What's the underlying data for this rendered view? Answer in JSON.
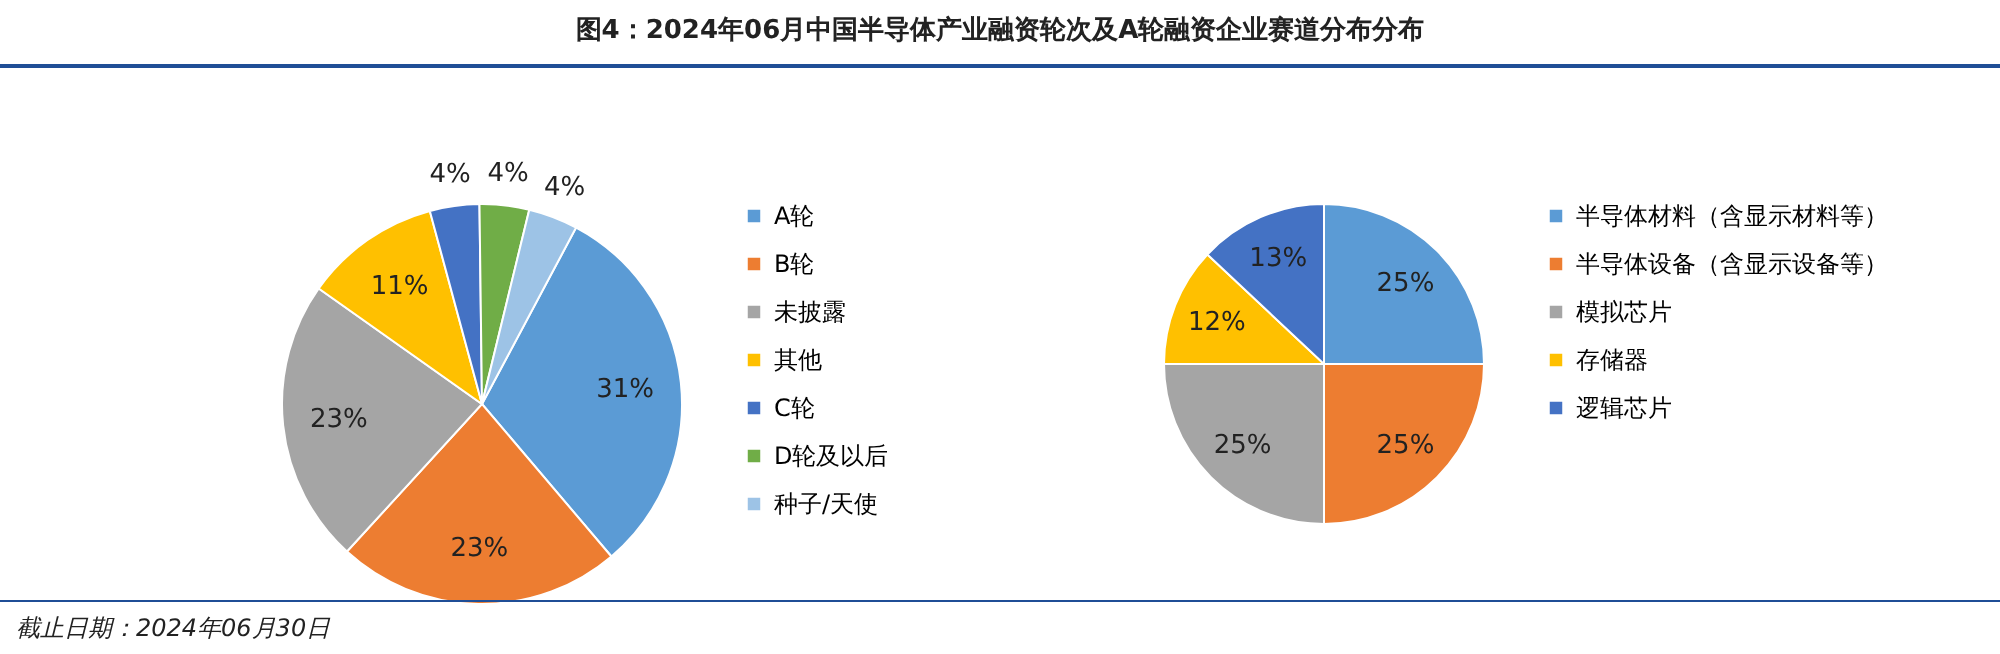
{
  "chart_data": [
    {
      "type": "pie",
      "title": "图4：2024年06月中国半导体产业融资轮次及A轮融资企业赛道分布分布",
      "categories": [
        "A轮",
        "B轮",
        "未披露",
        "其他",
        "C轮",
        "D轮及以后",
        "种子/天使"
      ],
      "values": [
        31,
        23,
        23,
        11,
        4,
        4,
        4
      ],
      "colors": [
        "#5b9bd5",
        "#ed7d31",
        "#a5a5a5",
        "#ffc000",
        "#4472c4",
        "#70ad47",
        "#9dc3e6"
      ],
      "value_labels": [
        "31%",
        "23%",
        "23%",
        "11%",
        "4%",
        "4%",
        "4%"
      ],
      "legend": "right"
    },
    {
      "type": "pie",
      "categories": [
        "半导体材料（含显示材料等）",
        "半导体设备（含显示设备等）",
        "模拟芯片",
        "存储器",
        "逻辑芯片"
      ],
      "values": [
        25,
        25,
        25,
        12,
        13
      ],
      "colors": [
        "#5b9bd5",
        "#ed7d31",
        "#a5a5a5",
        "#ffc000",
        "#4472c4"
      ],
      "value_labels": [
        "25%",
        "25%",
        "25%",
        "12%",
        "13%"
      ],
      "legend": "right",
      "annotations": [
        "截止日期：2024年06月30日"
      ]
    }
  ]
}
